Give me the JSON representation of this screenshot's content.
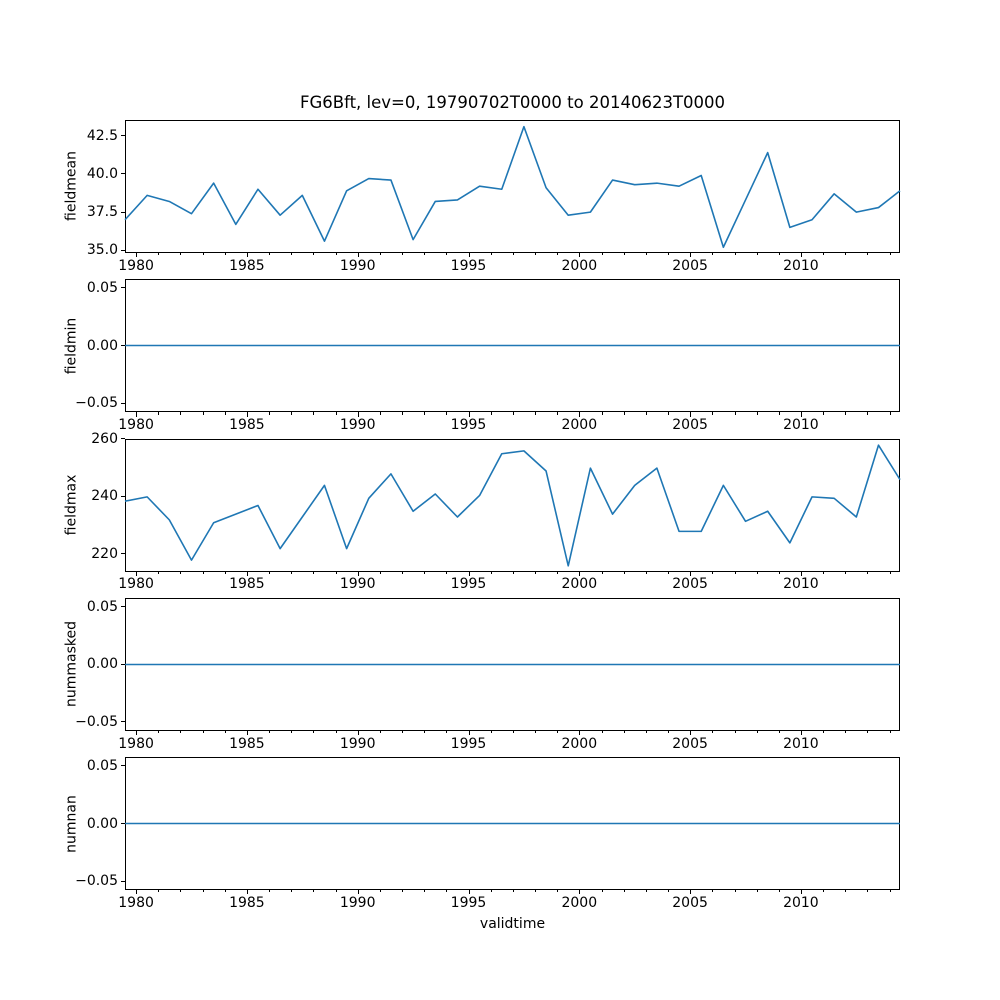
{
  "figure": {
    "title": "FG6Bft, lev=0, 19790702T0000 to 20140623T0000",
    "xlabel": "validtime",
    "line_color": "#1f77b4",
    "axis_color": "#000000",
    "background_color": "#ffffff"
  },
  "chart_data": [
    {
      "type": "line",
      "ylabel": "fieldmean",
      "x": [
        1979.5,
        1980.5,
        1981.5,
        1982.5,
        1983.5,
        1984.5,
        1985.5,
        1986.5,
        1987.5,
        1988.5,
        1989.5,
        1990.5,
        1991.5,
        1992.5,
        1993.5,
        1994.5,
        1995.5,
        1996.5,
        1997.5,
        1998.5,
        1999.5,
        2000.5,
        2001.5,
        2002.5,
        2003.5,
        2004.5,
        2005.5,
        2006.5,
        2007.5,
        2008.5,
        2009.5,
        2010.5,
        2011.5,
        2012.5,
        2013.5,
        2014.47
      ],
      "values": [
        37.0,
        38.6,
        38.2,
        37.4,
        39.4,
        36.7,
        39.0,
        37.3,
        38.6,
        35.6,
        38.9,
        39.7,
        39.6,
        35.7,
        38.2,
        38.3,
        39.2,
        39.0,
        43.1,
        39.1,
        37.3,
        37.5,
        39.6,
        39.3,
        39.4,
        39.2,
        39.9,
        35.2,
        38.3,
        41.4,
        36.5,
        37.0,
        38.7,
        37.5,
        37.8,
        38.9
      ],
      "xlim": [
        1979.5,
        2014.47
      ],
      "ylim": [
        34.83,
        43.53
      ],
      "ytick_values": [
        42.5,
        40.0,
        37.5,
        35.0
      ],
      "ytick_labels": [
        "42.5",
        "40.0",
        "37.5",
        "35.0"
      ],
      "xtick_values": [
        1980,
        1985,
        1990,
        1995,
        2000,
        2005,
        2010
      ],
      "xtick_labels": [
        "1980",
        "1985",
        "1990",
        "1995",
        "2000",
        "2005",
        "2010"
      ],
      "minor_xticks_every_year": true,
      "grid": false
    },
    {
      "type": "line",
      "ylabel": "fieldmin",
      "x": [
        1979.5,
        2014.47
      ],
      "values": [
        0.0,
        0.0
      ],
      "xlim": [
        1979.5,
        2014.47
      ],
      "ylim": [
        -0.0575,
        0.0575
      ],
      "ytick_values": [
        0.05,
        0.0,
        -0.05
      ],
      "ytick_labels": [
        "0.05",
        "0.00",
        "−0.05"
      ],
      "xtick_values": [
        1980,
        1985,
        1990,
        1995,
        2000,
        2005,
        2010
      ],
      "xtick_labels": [
        "1980",
        "1985",
        "1990",
        "1995",
        "2000",
        "2005",
        "2010"
      ],
      "minor_xticks_every_year": true,
      "grid": false
    },
    {
      "type": "line",
      "ylabel": "fieldmax",
      "x": [
        1979.5,
        1980.5,
        1981.5,
        1982.5,
        1983.5,
        1984.5,
        1985.5,
        1986.5,
        1987.5,
        1988.5,
        1989.5,
        1990.5,
        1991.5,
        1992.5,
        1993.5,
        1994.5,
        1995.5,
        1996.5,
        1997.5,
        1998.5,
        1999.5,
        2000.5,
        2001.5,
        2002.5,
        2003.5,
        2004.5,
        2005.5,
        2006.5,
        2007.5,
        2008.5,
        2009.5,
        2010.5,
        2011.5,
        2012.5,
        2013.5,
        2014.47
      ],
      "values": [
        238.5,
        240,
        232,
        218,
        231,
        234,
        237,
        222,
        233,
        244,
        222,
        239.5,
        248,
        235,
        241,
        233,
        240.5,
        255,
        256,
        249,
        216,
        250,
        234,
        244,
        250,
        228,
        228,
        244,
        231.5,
        235,
        224,
        240,
        239.5,
        233,
        258,
        246
      ],
      "xlim": [
        1979.5,
        2014.47
      ],
      "ylim": [
        213.9,
        260.1
      ],
      "ytick_values": [
        260,
        240,
        220
      ],
      "ytick_labels": [
        "260",
        "240",
        "220"
      ],
      "xtick_values": [
        1980,
        1985,
        1990,
        1995,
        2000,
        2005,
        2010
      ],
      "xtick_labels": [
        "1980",
        "1985",
        "1990",
        "1995",
        "2000",
        "2005",
        "2010"
      ],
      "minor_xticks_every_year": true,
      "grid": false
    },
    {
      "type": "line",
      "ylabel": "nummasked",
      "x": [
        1979.5,
        2014.47
      ],
      "values": [
        0.0,
        0.0
      ],
      "xlim": [
        1979.5,
        2014.47
      ],
      "ylim": [
        -0.0575,
        0.0575
      ],
      "ytick_values": [
        0.05,
        0.0,
        -0.05
      ],
      "ytick_labels": [
        "0.05",
        "0.00",
        "−0.05"
      ],
      "xtick_values": [
        1980,
        1985,
        1990,
        1995,
        2000,
        2005,
        2010
      ],
      "xtick_labels": [
        "1980",
        "1985",
        "1990",
        "1995",
        "2000",
        "2005",
        "2010"
      ],
      "minor_xticks_every_year": true,
      "grid": false
    },
    {
      "type": "line",
      "ylabel": "numnan",
      "x": [
        1979.5,
        2014.47
      ],
      "values": [
        0.0,
        0.0
      ],
      "xlim": [
        1979.5,
        2014.47
      ],
      "ylim": [
        -0.0575,
        0.0575
      ],
      "ytick_values": [
        0.05,
        0.0,
        -0.05
      ],
      "ytick_labels": [
        "0.05",
        "0.00",
        "−0.05"
      ],
      "xtick_values": [
        1980,
        1985,
        1990,
        1995,
        2000,
        2005,
        2010
      ],
      "xtick_labels": [
        "1980",
        "1985",
        "1990",
        "1995",
        "2000",
        "2005",
        "2010"
      ],
      "minor_xticks_every_year": true,
      "grid": false
    }
  ]
}
